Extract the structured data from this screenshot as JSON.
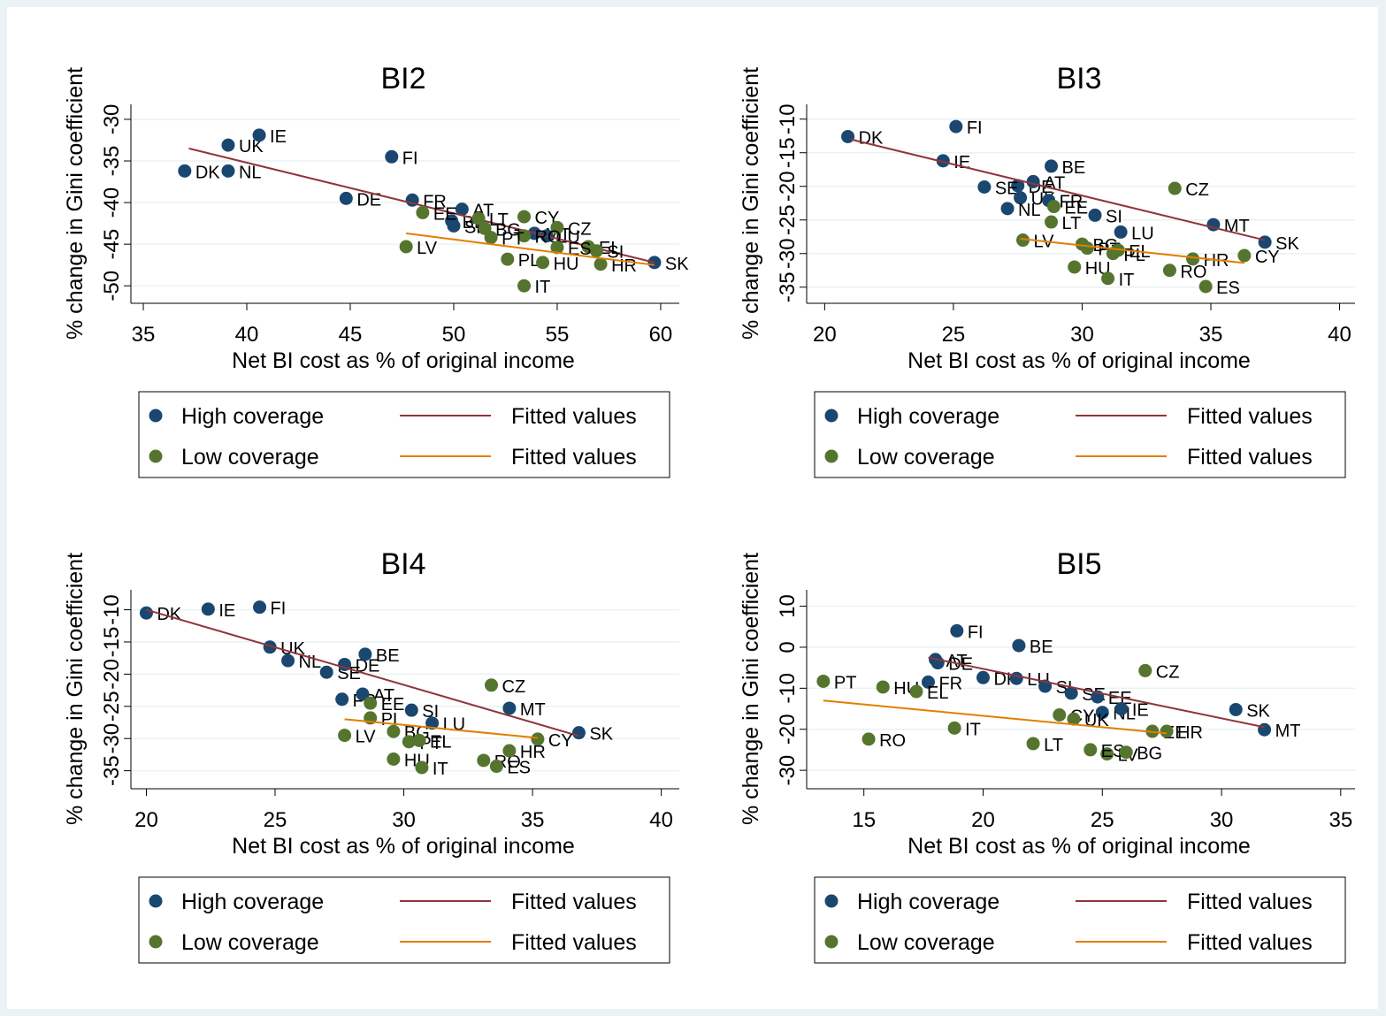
{
  "chart_data": [
    {
      "type": "scatter",
      "title": "BI2",
      "x_label": "Net BI cost as % of original income",
      "y_label": "% change in Gini coefficient",
      "xlim": [
        34.4,
        60.9
      ],
      "ylim": [
        -52.1,
        -28.2
      ],
      "xticks": [
        35,
        40,
        45,
        50,
        55,
        60
      ],
      "yticks": [
        -50,
        -45,
        -40,
        -35,
        -30
      ],
      "grid": true,
      "series": [
        {
          "name": "High coverage",
          "type": "scatter",
          "color": "#1a476f",
          "labels": [
            "DK",
            "UK",
            "IE",
            "NL",
            "DE",
            "FI",
            "FR",
            "AT",
            "BE",
            "SE",
            "MT",
            "LU",
            "SK"
          ],
          "x": [
            37.0,
            39.1,
            40.6,
            39.1,
            44.8,
            47.0,
            48.0,
            50.4,
            49.9,
            50.0,
            53.9,
            54.5,
            59.7
          ],
          "y": [
            -36.2,
            -33.1,
            -31.9,
            -36.2,
            -39.5,
            -34.5,
            -39.7,
            -40.8,
            -42.2,
            -42.8,
            -43.7,
            -44.0,
            -47.2
          ]
        },
        {
          "name": "Fitted values",
          "type": "line",
          "color": "#90353b",
          "x": [
            37.2,
            59.7
          ],
          "y": [
            -33.5,
            -47.2
          ]
        },
        {
          "name": "Low coverage",
          "type": "scatter",
          "color": "#55752f",
          "labels": [
            "CY",
            "CZ",
            "EE",
            "LV",
            "BG",
            "PL",
            "IT",
            "HU",
            "EL",
            "HR",
            "SI",
            "RO",
            "PT",
            "ES",
            "LT"
          ],
          "x": [
            53.4,
            55.0,
            48.5,
            47.7,
            51.5,
            52.6,
            53.4,
            54.3,
            56.5,
            57.1,
            56.9,
            53.4,
            51.8,
            55.0,
            51.2
          ],
          "y": [
            -41.7,
            -43.0,
            -41.2,
            -45.3,
            -43.1,
            -46.8,
            -50.0,
            -47.2,
            -45.3,
            -47.4,
            -45.8,
            -44.0,
            -44.2,
            -45.4,
            -41.9
          ]
        },
        {
          "name": "Fitted values",
          "type": "line",
          "color": "#e37e00",
          "x": [
            47.7,
            59.7
          ],
          "y": [
            -43.7,
            -47.5
          ]
        }
      ]
    },
    {
      "type": "scatter",
      "title": "BI3",
      "x_label": "Net BI cost as % of original income",
      "y_label": "% change in Gini coefficient",
      "xlim": [
        19.3,
        40.6
      ],
      "ylim": [
        -37.4,
        -7.8
      ],
      "xticks": [
        20,
        25,
        30,
        35,
        40
      ],
      "yticks": [
        -35,
        -30,
        -25,
        -20,
        -15,
        -10
      ],
      "grid": true,
      "series": [
        {
          "name": "High coverage",
          "type": "scatter",
          "color": "#1a476f",
          "labels": [
            "DK",
            "FI",
            "IE",
            "BE",
            "DE",
            "AT",
            "SE",
            "UK",
            "NL",
            "FR",
            "SI",
            "LU",
            "MT",
            "SK"
          ],
          "x": [
            20.9,
            25.1,
            24.6,
            28.8,
            27.5,
            28.1,
            26.2,
            27.6,
            27.1,
            28.7,
            30.5,
            31.5,
            35.1,
            37.1
          ],
          "y": [
            -12.6,
            -11.1,
            -16.2,
            -17.0,
            -19.9,
            -19.3,
            -20.1,
            -21.7,
            -23.3,
            -22.1,
            -24.3,
            -26.8,
            -25.7,
            -28.3
          ]
        },
        {
          "name": "Fitted values",
          "type": "line",
          "color": "#90353b",
          "x": [
            21.0,
            37.1
          ],
          "y": [
            -13.0,
            -28.0
          ]
        },
        {
          "name": "Low coverage",
          "type": "scatter",
          "color": "#55752f",
          "labels": [
            "CZ",
            "LV",
            "LT",
            "EE",
            "BG",
            "PT",
            "PL",
            "HU",
            "IT",
            "RO",
            "ES",
            "HR",
            "CY",
            "EL"
          ],
          "x": [
            33.6,
            27.7,
            28.8,
            28.9,
            30.0,
            30.2,
            31.2,
            29.7,
            31.0,
            33.4,
            34.8,
            34.3,
            36.3,
            31.4
          ],
          "y": [
            -20.3,
            -28.0,
            -25.3,
            -23.0,
            -28.6,
            -29.2,
            -30.0,
            -32.0,
            -33.7,
            -32.5,
            -34.9,
            -30.8,
            -30.3,
            -29.5
          ]
        },
        {
          "name": "Fitted values",
          "type": "line",
          "color": "#e37e00",
          "x": [
            27.6,
            36.3
          ],
          "y": [
            -27.8,
            -31.4
          ]
        }
      ]
    },
    {
      "type": "scatter",
      "title": "BI4",
      "x_label": "Net BI cost as % of original income",
      "y_label": "% change in Gini coefficient",
      "xlim": [
        19.4,
        40.7
      ],
      "ylim": [
        -37.8,
        -6.9
      ],
      "xticks": [
        20,
        25,
        30,
        35,
        40
      ],
      "yticks": [
        -35,
        -30,
        -25,
        -20,
        -15,
        -10
      ],
      "grid": true,
      "series": [
        {
          "name": "High coverage",
          "type": "scatter",
          "color": "#1a476f",
          "labels": [
            "DK",
            "IE",
            "FI",
            "UK",
            "NL",
            "SE",
            "DE",
            "BE",
            "FR",
            "AT",
            "SI",
            "LU",
            "MT",
            "SK"
          ],
          "x": [
            20.0,
            22.4,
            24.4,
            24.8,
            25.5,
            27.0,
            27.7,
            28.5,
            27.6,
            28.4,
            30.3,
            31.1,
            34.1,
            36.8
          ],
          "y": [
            -10.5,
            -9.9,
            -9.6,
            -15.8,
            -17.9,
            -19.7,
            -18.5,
            -16.9,
            -23.9,
            -23.1,
            -25.6,
            -27.6,
            -25.3,
            -29.1
          ]
        },
        {
          "name": "Fitted values",
          "type": "line",
          "color": "#90353b",
          "x": [
            20.0,
            36.8
          ],
          "y": [
            -10.0,
            -29.6
          ]
        },
        {
          "name": "Low coverage",
          "type": "scatter",
          "color": "#55752f",
          "labels": [
            "CZ",
            "LV",
            "EE",
            "PL",
            "BG",
            "PT",
            "EL",
            "HU",
            "IT",
            "RO",
            "ES",
            "HR",
            "CY"
          ],
          "x": [
            33.4,
            27.7,
            28.7,
            28.7,
            29.6,
            30.2,
            30.6,
            29.6,
            30.7,
            33.1,
            33.6,
            34.1,
            35.2
          ],
          "y": [
            -21.7,
            -29.5,
            -24.5,
            -26.8,
            -28.9,
            -30.5,
            -30.3,
            -33.2,
            -34.5,
            -33.4,
            -34.3,
            -31.9,
            -30.1
          ]
        },
        {
          "name": "Fitted values",
          "type": "line",
          "color": "#e37e00",
          "x": [
            27.7,
            35.2
          ],
          "y": [
            -27.0,
            -29.9
          ]
        }
      ]
    },
    {
      "type": "scatter",
      "title": "BI5",
      "x_label": "Net BI cost as % of original income",
      "y_label": "% change in Gini coefficient",
      "xlim": [
        12.6,
        35.6
      ],
      "ylim": [
        -34.5,
        14.0
      ],
      "xticks": [
        15,
        20,
        25,
        30,
        35
      ],
      "yticks": [
        -30,
        -20,
        -10,
        0,
        10
      ],
      "grid": true,
      "series": [
        {
          "name": "High coverage",
          "type": "scatter",
          "color": "#1a476f",
          "labels": [
            "AT",
            "DE",
            "FI",
            "BE",
            "DK",
            "FR",
            "LU",
            "SI",
            "SE",
            "EE",
            "NL",
            "IE",
            "SK",
            "MT"
          ],
          "x": [
            18.0,
            18.1,
            18.9,
            21.5,
            20.0,
            17.7,
            21.4,
            22.6,
            23.7,
            24.8,
            25.0,
            25.8,
            30.6,
            31.8
          ],
          "y": [
            -3.0,
            -3.8,
            4.0,
            0.4,
            -7.4,
            -8.5,
            -7.6,
            -9.5,
            -11.2,
            -12.1,
            -15.9,
            -15.0,
            -15.2,
            -20.1
          ]
        },
        {
          "name": "Fitted values",
          "type": "line",
          "color": "#90353b",
          "x": [
            17.7,
            31.8
          ],
          "y": [
            -2.5,
            -19.5
          ]
        },
        {
          "name": "Low coverage",
          "type": "scatter",
          "color": "#55752f",
          "labels": [
            "CZ",
            "PT",
            "HU",
            "EL",
            "IT",
            "RO",
            "LT",
            "CY",
            "UK",
            "LV",
            "ES",
            "BG",
            "EE",
            "HR"
          ],
          "x": [
            26.8,
            13.3,
            15.8,
            17.2,
            18.8,
            15.2,
            22.1,
            23.2,
            23.8,
            25.2,
            24.5,
            26.0,
            27.1,
            27.7
          ],
          "y": [
            -5.7,
            -8.3,
            -9.7,
            -10.8,
            -19.7,
            -22.4,
            -23.5,
            -16.5,
            -17.5,
            -26.0,
            -25.0,
            -25.6,
            -20.5,
            -20.5
          ]
        },
        {
          "name": "Fitted values",
          "type": "line",
          "color": "#e37e00",
          "x": [
            13.3,
            27.7
          ],
          "y": [
            -13.0,
            -21.0
          ]
        }
      ]
    }
  ]
}
